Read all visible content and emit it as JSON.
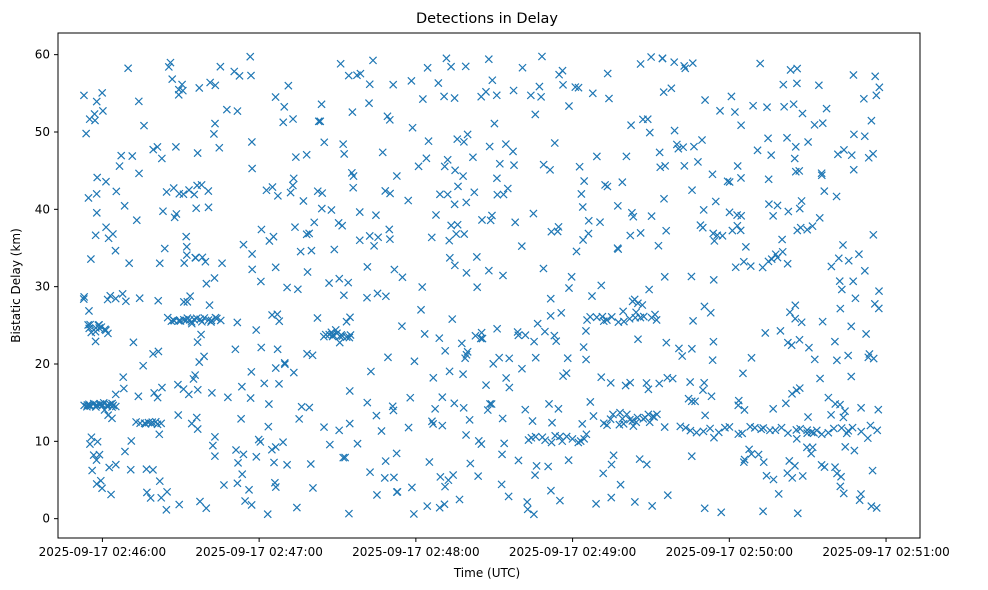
{
  "chart_data": {
    "type": "scatter",
    "title": "Detections in Delay",
    "xlabel": "Time (UTC)",
    "ylabel": "Bistatic Delay (km)",
    "marker": "x",
    "color": "#1f77b4",
    "xlim_seconds": [
      -17,
      313
    ],
    "ylim": [
      -2.5,
      62.8
    ],
    "x_epoch_label": "2025-09-17 02:46:00",
    "xticks": [
      {
        "s": 0,
        "label": "2025-09-17 02:46:00"
      },
      {
        "s": 60,
        "label": "2025-09-17 02:47:00"
      },
      {
        "s": 120,
        "label": "2025-09-17 02:48:00"
      },
      {
        "s": 180,
        "label": "2025-09-17 02:49:00"
      },
      {
        "s": 240,
        "label": "2025-09-17 02:50:00"
      },
      {
        "s": 300,
        "label": "2025-09-17 02:51:00"
      }
    ],
    "yticks": [
      0,
      10,
      20,
      30,
      40,
      50,
      60
    ],
    "x_range_seconds": [
      -7.5,
      297.5
    ],
    "y_range": [
      0.5,
      59.8
    ],
    "approx_point_count": 1000,
    "clusters": [
      {
        "x0": -7,
        "x1": 5,
        "y": 14.7,
        "n": 22,
        "jitter": 0.3
      },
      {
        "x0": -6,
        "x1": 2,
        "y": 24.5,
        "n": 12,
        "jitter": 0.6
      },
      {
        "x0": 25,
        "x1": 45,
        "y": 25.7,
        "n": 22,
        "jitter": 0.3
      },
      {
        "x0": 15,
        "x1": 22,
        "y": 12.4,
        "n": 9,
        "jitter": 0.2
      },
      {
        "x0": 85,
        "x1": 95,
        "y": 23.7,
        "n": 12,
        "jitter": 0.3
      },
      {
        "x0": 163,
        "x1": 185,
        "y": 10.3,
        "n": 14,
        "jitter": 0.5
      },
      {
        "x0": 185,
        "x1": 212,
        "y": 25.8,
        "n": 14,
        "jitter": 0.4
      },
      {
        "x0": 192,
        "x1": 212,
        "y": 12.8,
        "n": 16,
        "jitter": 0.8
      },
      {
        "x0": 223,
        "x1": 290,
        "y": 11.4,
        "n": 28,
        "jitter": 0.5
      },
      {
        "x0": 25,
        "x1": 40,
        "y": 42.5,
        "n": 8,
        "jitter": 0.7
      }
    ],
    "background_points": 800
  }
}
